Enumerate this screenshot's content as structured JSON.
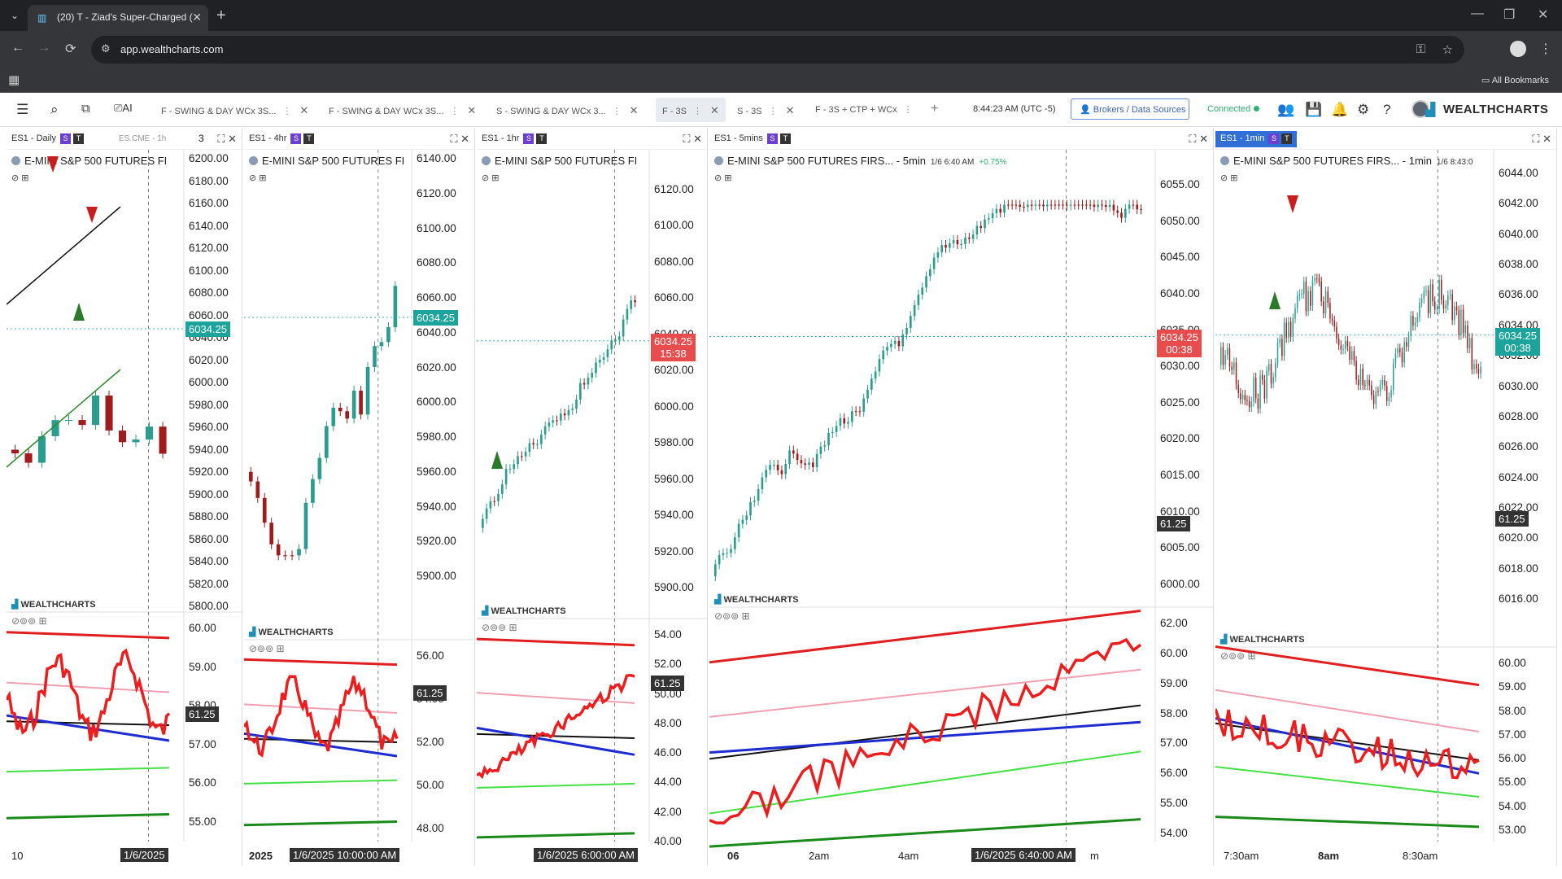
{
  "browser": {
    "tab_title": "(20) T - Ziad's Super-Charged (",
    "url": "app.wealthcharts.com",
    "all_bookmarks": "All Bookmarks"
  },
  "toolbar": {
    "layout_tabs": [
      {
        "label": "F - SWING & DAY WCx 3S..."
      },
      {
        "label": "F - SWING & DAY WCx 3S..."
      },
      {
        "label": "S - SWING & DAY WCx 3..."
      },
      {
        "label": "F - 3S"
      },
      {
        "label": "S - 3S"
      },
      {
        "label": "F - 3S + CTP + WCx"
      }
    ],
    "clock": "8:44:23 AM  (UTC -5)",
    "brokers_label": "Brokers / Data Sources",
    "connected_label": "Connected",
    "brand": "WEALTHCHARTS"
  },
  "colors": {
    "teal": "#1ba39c",
    "red": "#e84c4c",
    "up_candle": "#2a9d8f",
    "down_candle": "#a01c1c",
    "accent_blue": "#2f6fd6"
  },
  "panels": [
    {
      "symbol_tab": "ES1 - Daily",
      "extra": "ES.CME - 1h",
      "extra_count": "3",
      "title": "E-MINI S&P 500 FUTURES FI",
      "price_axis": [
        "6200.00",
        "6180.00",
        "6160.00",
        "6140.00",
        "6120.00",
        "6100.00",
        "6080.00",
        "6060.00",
        "6040.00",
        "6020.00",
        "6000.00",
        "5980.00",
        "5960.00",
        "5940.00",
        "5920.00",
        "5900.00",
        "5880.00",
        "5860.00",
        "5840.00",
        "5820.00",
        "5800.00"
      ],
      "price_tag": "6034.25",
      "ind_tag": "61.25",
      "ind_axis": [
        "60.00",
        "59.00",
        "58.00",
        "57.00",
        "56.00",
        "55.00"
      ],
      "time_left": "10",
      "time_cur": "1/6/2025"
    },
    {
      "symbol_tab": "ES1 - 4hr",
      "title": "E-MINI S&P 500 FUTURES FI",
      "price_axis": [
        "6140.00",
        "6120.00",
        "6100.00",
        "6080.00",
        "6060.00",
        "6040.00",
        "6020.00",
        "6000.00",
        "5980.00",
        "5960.00",
        "5940.00",
        "5920.00",
        "5900.00"
      ],
      "price_tag": "6034.25",
      "ind_tag": "61.25",
      "ind_axis": [
        "56.00",
        "54.00",
        "52.00",
        "50.00",
        "48.00"
      ],
      "time_left": "2025",
      "time_cur": "1/6/2025 10:00:00 AM"
    },
    {
      "symbol_tab": "ES1 - 1hr",
      "title": "E-MINI S&P 500 FUTURES FI",
      "price_axis": [
        "6120.00",
        "6100.00",
        "6080.00",
        "6060.00",
        "6040.00",
        "6020.00",
        "6000.00",
        "5980.00",
        "5960.00",
        "5940.00",
        "5920.00",
        "5900.00"
      ],
      "price_tag": "6034.25",
      "price_tag_time": "15:38",
      "ind_tag": "61.25",
      "ind_axis": [
        "54.00",
        "52.00",
        "50.00",
        "48.00",
        "46.00",
        "44.00",
        "42.00",
        "40.00"
      ],
      "time_cur": "1/6/2025 6:00:00 AM"
    },
    {
      "symbol_tab": "ES1 - 5mins",
      "title": "E-MINI S&P 500 FUTURES FIRS... - 5min",
      "title_sub": "1/6 6:40 AM",
      "title_pct": "+0.75%",
      "price_axis": [
        "6055.00",
        "6050.00",
        "6045.00",
        "6040.00",
        "6035.00",
        "6030.00",
        "6025.00",
        "6020.00",
        "6015.00",
        "6010.00",
        "6005.00",
        "6000.00"
      ],
      "price_tag": "6034.25",
      "price_tag_time": "00:38",
      "ind_tag": "61.25",
      "ind_axis": [
        "62.00",
        "60.00",
        "59.00",
        "58.00",
        "57.00",
        "56.00",
        "55.00",
        "54.00"
      ],
      "time_labels": [
        "06",
        "2am",
        "4am",
        "m"
      ],
      "time_cur": "1/6/2025 6:40:00 AM"
    },
    {
      "symbol_tab": "ES1 - 1min",
      "title": "E-MINI S&P 500 FUTURES FIRS... - 1min",
      "title_sub": "1/6 8:43:0",
      "price_axis": [
        "6044.00",
        "6042.00",
        "6040.00",
        "6038.00",
        "6036.00",
        "6034.00",
        "6032.00",
        "6030.00",
        "6028.00",
        "6026.00",
        "6024.00",
        "6022.00",
        "6020.00",
        "6018.00",
        "6016.00"
      ],
      "price_tag": "6034.25",
      "price_tag_time": "00:38",
      "ind_tag": "61.25",
      "ind_axis": [
        "60.00",
        "59.00",
        "58.00",
        "57.00",
        "56.00",
        "55.00",
        "54.00",
        "53.00"
      ],
      "time_labels": [
        "7:30am",
        "8am",
        "8:30am"
      ]
    }
  ],
  "watermark": "WEALTHCHARTS"
}
